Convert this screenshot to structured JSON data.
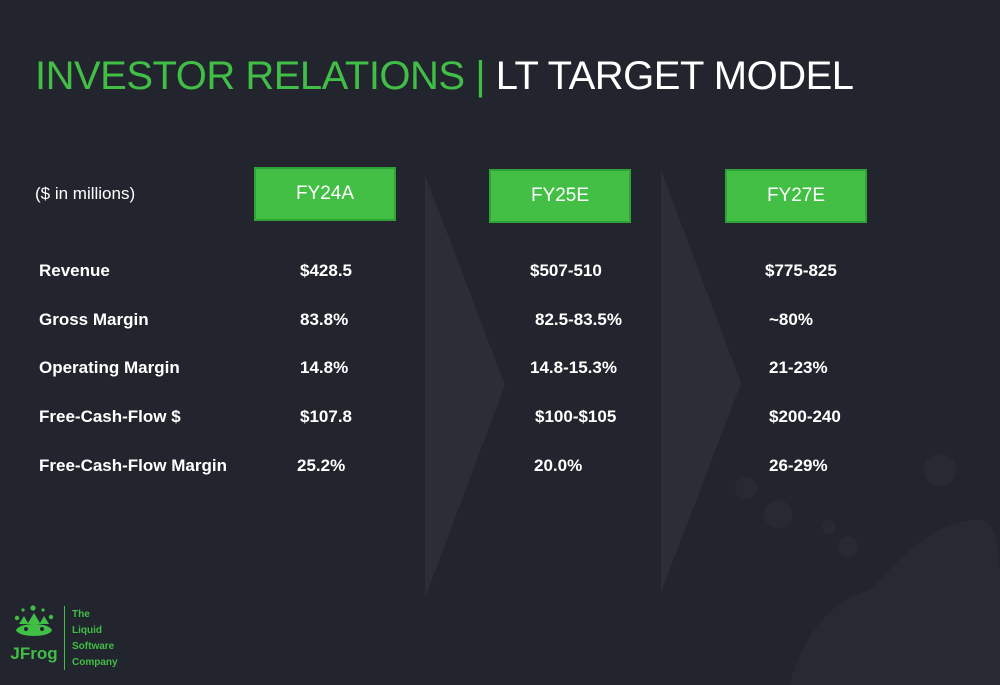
{
  "title": {
    "part1": "INVESTOR RELATIONS | ",
    "part2": "LT TARGET MODEL"
  },
  "units_label": "($ in millions)",
  "columns": [
    "FY24A",
    "FY25E",
    "FY27E"
  ],
  "rows": [
    {
      "label": "Revenue",
      "values": [
        "$428.5",
        "$507-510",
        "$775-825"
      ]
    },
    {
      "label": "Gross Margin",
      "values": [
        "83.8%",
        "82.5-83.5%",
        "~80%"
      ]
    },
    {
      "label": "Operating Margin",
      "values": [
        "14.8%",
        "14.8-15.3%",
        "21-23%"
      ]
    },
    {
      "label": "Free-Cash-Flow $",
      "values": [
        "$107.8",
        "$100-$105",
        "$200-240"
      ]
    },
    {
      "label": "Free-Cash-Flow Margin",
      "values": [
        "25.2%",
        "20.0%",
        "26-29%"
      ]
    }
  ],
  "logo": {
    "name": "JFrog",
    "tagline": [
      "The",
      "Liquid",
      "Software",
      "Company"
    ]
  },
  "colors": {
    "accent": "#40be46",
    "background": "#22252d",
    "header_fill": "#42bf44"
  }
}
